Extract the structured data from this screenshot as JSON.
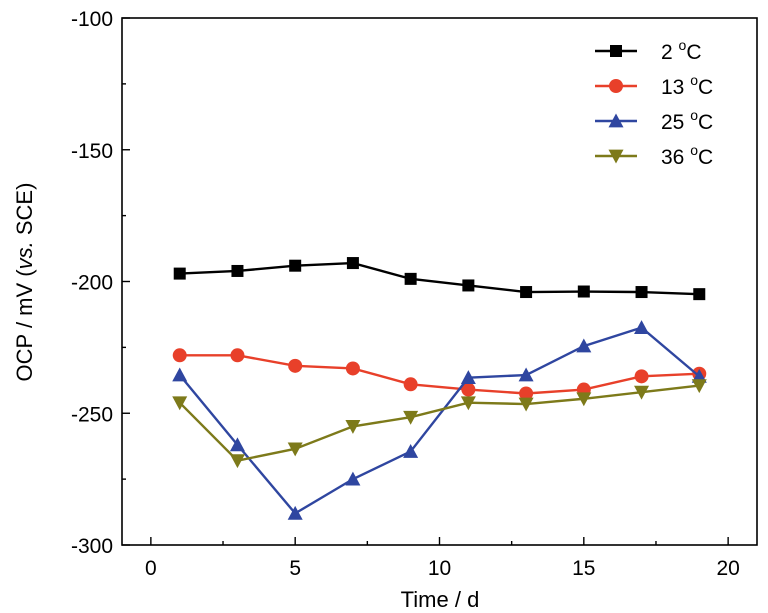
{
  "chart_data": {
    "type": "line",
    "xlabel": "Time / d",
    "ylabel_parts": [
      "OCP / mV (",
      "vs.",
      " SCE)"
    ],
    "xlim": [
      -1,
      21
    ],
    "ylim": [
      -300,
      -100
    ],
    "x_ticks": [
      0,
      5,
      10,
      15,
      20
    ],
    "y_ticks": [
      -100,
      -150,
      -200,
      -250,
      -300
    ],
    "legend_position": "top-right",
    "grid": false,
    "series": [
      {
        "name": "2 °C",
        "name_parts": [
          "2 ",
          "o",
          "C"
        ],
        "color": "#000000",
        "marker": "square",
        "x": [
          1,
          3,
          5,
          7,
          9,
          11,
          13,
          15,
          17,
          19
        ],
        "y": [
          -197,
          -196,
          -194,
          -193,
          -199,
          -201.5,
          -204,
          -203.8,
          -204,
          -204.8
        ]
      },
      {
        "name": "13 °C",
        "name_parts": [
          "13 ",
          "o",
          "C"
        ],
        "color": "#e8402a",
        "marker": "circle",
        "x": [
          1,
          3,
          5,
          7,
          9,
          11,
          13,
          15,
          17,
          19
        ],
        "y": [
          -228,
          -228,
          -232,
          -233,
          -239,
          -241,
          -242.5,
          -241,
          -236,
          -235
        ]
      },
      {
        "name": "25 °C",
        "name_parts": [
          "25 ",
          "o",
          "C"
        ],
        "color": "#2f46a0",
        "marker": "triangle-up",
        "x": [
          1,
          3,
          5,
          7,
          9,
          11,
          13,
          15,
          17,
          19
        ],
        "y": [
          -235.5,
          -262,
          -288,
          -275,
          -264.5,
          -236.5,
          -235.5,
          -224.5,
          -217.5,
          -236
        ]
      },
      {
        "name": "36 °C",
        "name_parts": [
          "36 ",
          "o",
          "C"
        ],
        "color": "#7d7a1a",
        "marker": "triangle-down",
        "x": [
          1,
          3,
          5,
          7,
          9,
          11,
          13,
          15,
          17,
          19
        ],
        "y": [
          -246,
          -268,
          -263.5,
          -255,
          -251.5,
          -246,
          -246.5,
          -244.5,
          -242,
          -239.5
        ]
      }
    ]
  }
}
